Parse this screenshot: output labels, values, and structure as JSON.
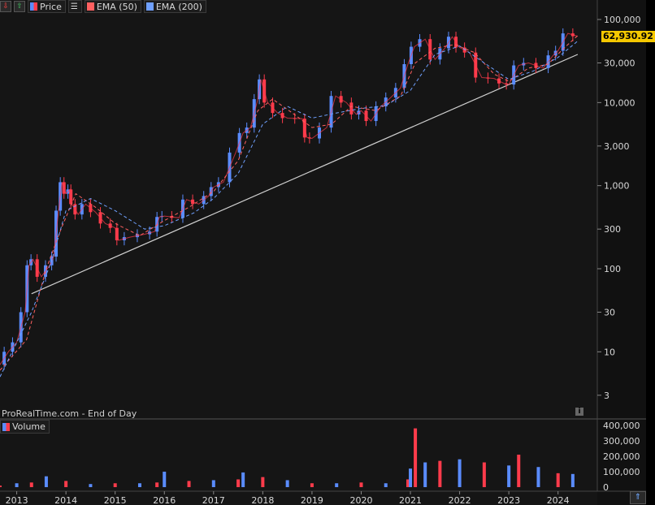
{
  "legend": {
    "price_label": "Price",
    "ema50_label": "EMA (50)",
    "ema200_label": "EMA (200)",
    "volume_label": "Volume"
  },
  "source_text": "ProRealTime.com - End of Day",
  "last_price": "62,930.92",
  "colors": {
    "background": "#151515",
    "up": "#5a8cff",
    "down": "#ff3b4b",
    "ema50": "#ff6060",
    "ema200": "#6fa0ff",
    "trendline": "#d0d0d0",
    "price_tag": "#f5c800"
  },
  "icons": [
    "info-icon",
    "scroll-up-icon"
  ],
  "chart_data": [
    {
      "type": "candlestick",
      "scale": "log",
      "ylim": [
        1.5,
        190000
      ],
      "y_ticks": [
        3,
        10,
        30,
        100,
        300,
        1000,
        3000,
        10000,
        30000,
        100000
      ],
      "y_tick_labels": [
        "3",
        "10",
        "30",
        "100",
        "300",
        "1,000",
        "3,000",
        "10,000",
        "30,000",
        "100,000"
      ],
      "x_ticks": [
        "2013",
        "2014",
        "2015",
        "2016",
        "2017",
        "2018",
        "2019",
        "2020",
        "2021",
        "2022",
        "2023",
        "2024"
      ],
      "price_series": {
        "x": [
          2012.66,
          2012.83,
          2013.0,
          2013.17,
          2013.25,
          2013.33,
          2013.5,
          2013.67,
          2013.75,
          2013.85,
          2013.92,
          2014.0,
          2014.08,
          2014.12,
          2014.25,
          2014.4,
          2014.6,
          2014.8,
          2015.0,
          2015.07,
          2015.3,
          2015.6,
          2015.8,
          2015.9,
          2016.0,
          2016.3,
          2016.45,
          2016.7,
          2016.9,
          2017.0,
          2017.2,
          2017.45,
          2017.6,
          2017.75,
          2017.9,
          2017.96,
          2018.1,
          2018.3,
          2018.5,
          2018.8,
          2018.9,
          2019.0,
          2019.3,
          2019.48,
          2019.7,
          2019.9,
          2020.0,
          2020.2,
          2020.4,
          2020.6,
          2020.8,
          2020.95,
          2021.08,
          2021.3,
          2021.5,
          2021.7,
          2021.85,
          2022.0,
          2022.2,
          2022.45,
          2022.7,
          2022.9,
          2023.0,
          2023.2,
          2023.4,
          2023.7,
          2023.9,
          2024.0,
          2024.2,
          2024.4
        ],
        "y": [
          7,
          10,
          13,
          30,
          110,
          130,
          80,
          110,
          140,
          500,
          1100,
          800,
          900,
          600,
          450,
          600,
          480,
          350,
          310,
          220,
          240,
          260,
          280,
          420,
          430,
          410,
          680,
          600,
          750,
          960,
          1100,
          2500,
          4300,
          5000,
          11000,
          19000,
          10000,
          7500,
          6500,
          6400,
          3800,
          3700,
          5000,
          12000,
          10000,
          7200,
          8000,
          6000,
          9000,
          11500,
          15000,
          29000,
          47000,
          58000,
          33000,
          45000,
          62000,
          46000,
          40000,
          20000,
          19500,
          17000,
          16500,
          28000,
          30000,
          26000,
          37000,
          42000,
          68000,
          62930
        ]
      },
      "ema50": {
        "x": [
          2012.66,
          2013.2,
          2013.6,
          2013.9,
          2014.2,
          2014.6,
          2015.0,
          2015.5,
          2016.0,
          2016.5,
          2017.0,
          2017.5,
          2017.9,
          2018.2,
          2018.6,
          2019.0,
          2019.4,
          2019.8,
          2020.3,
          2020.8,
          2021.1,
          2021.5,
          2021.9,
          2022.3,
          2022.7,
          2023.0,
          2023.4,
          2023.8,
          2024.1,
          2024.4
        ],
        "y": [
          6,
          14,
          100,
          300,
          800,
          550,
          350,
          250,
          380,
          550,
          850,
          2000,
          8000,
          11000,
          7500,
          5000,
          5500,
          9000,
          8000,
          12000,
          30000,
          45000,
          50000,
          40000,
          22000,
          18000,
          26000,
          29000,
          44000,
          64000
        ]
      },
      "ema200": {
        "x": [
          2012.66,
          2013.3,
          2013.7,
          2014.0,
          2014.5,
          2015.0,
          2015.6,
          2016.0,
          2016.6,
          2017.0,
          2017.5,
          2018.0,
          2018.5,
          2019.0,
          2019.5,
          2020.0,
          2020.5,
          2021.0,
          2021.5,
          2022.0,
          2022.5,
          2023.0,
          2023.5,
          2024.0,
          2024.4
        ],
        "y": [
          5,
          30,
          120,
          500,
          700,
          500,
          300,
          330,
          470,
          700,
          1400,
          5500,
          9000,
          6500,
          7500,
          8500,
          9200,
          14000,
          38000,
          48000,
          30000,
          19000,
          24000,
          35000,
          55000
        ]
      },
      "trendline": {
        "x": [
          2013.3,
          2024.4
        ],
        "y": [
          50,
          38000
        ]
      }
    },
    {
      "type": "bar",
      "name": "Volume",
      "ylim": [
        0,
        420000
      ],
      "y_ticks": [
        0,
        100000,
        200000,
        300000,
        400000
      ],
      "y_tick_labels": [
        "0",
        "100,000",
        "200,000",
        "300,000",
        "400,000"
      ],
      "x": [
        2012.66,
        2013.0,
        2013.3,
        2013.6,
        2014.0,
        2014.5,
        2015.0,
        2015.5,
        2015.85,
        2016.0,
        2016.5,
        2017.0,
        2017.5,
        2017.6,
        2018.0,
        2018.5,
        2019.0,
        2019.5,
        2020.0,
        2020.5,
        2020.95,
        2021.0,
        2021.1,
        2021.3,
        2021.6,
        2022.0,
        2022.5,
        2023.0,
        2023.2,
        2023.6,
        2024.0,
        2024.3
      ],
      "values": [
        10000,
        25000,
        30000,
        70000,
        40000,
        20000,
        25000,
        25000,
        30000,
        100000,
        40000,
        45000,
        50000,
        95000,
        65000,
        45000,
        25000,
        25000,
        30000,
        25000,
        50000,
        120000,
        380000,
        160000,
        170000,
        180000,
        160000,
        140000,
        210000,
        130000,
        90000,
        85000
      ]
    }
  ]
}
